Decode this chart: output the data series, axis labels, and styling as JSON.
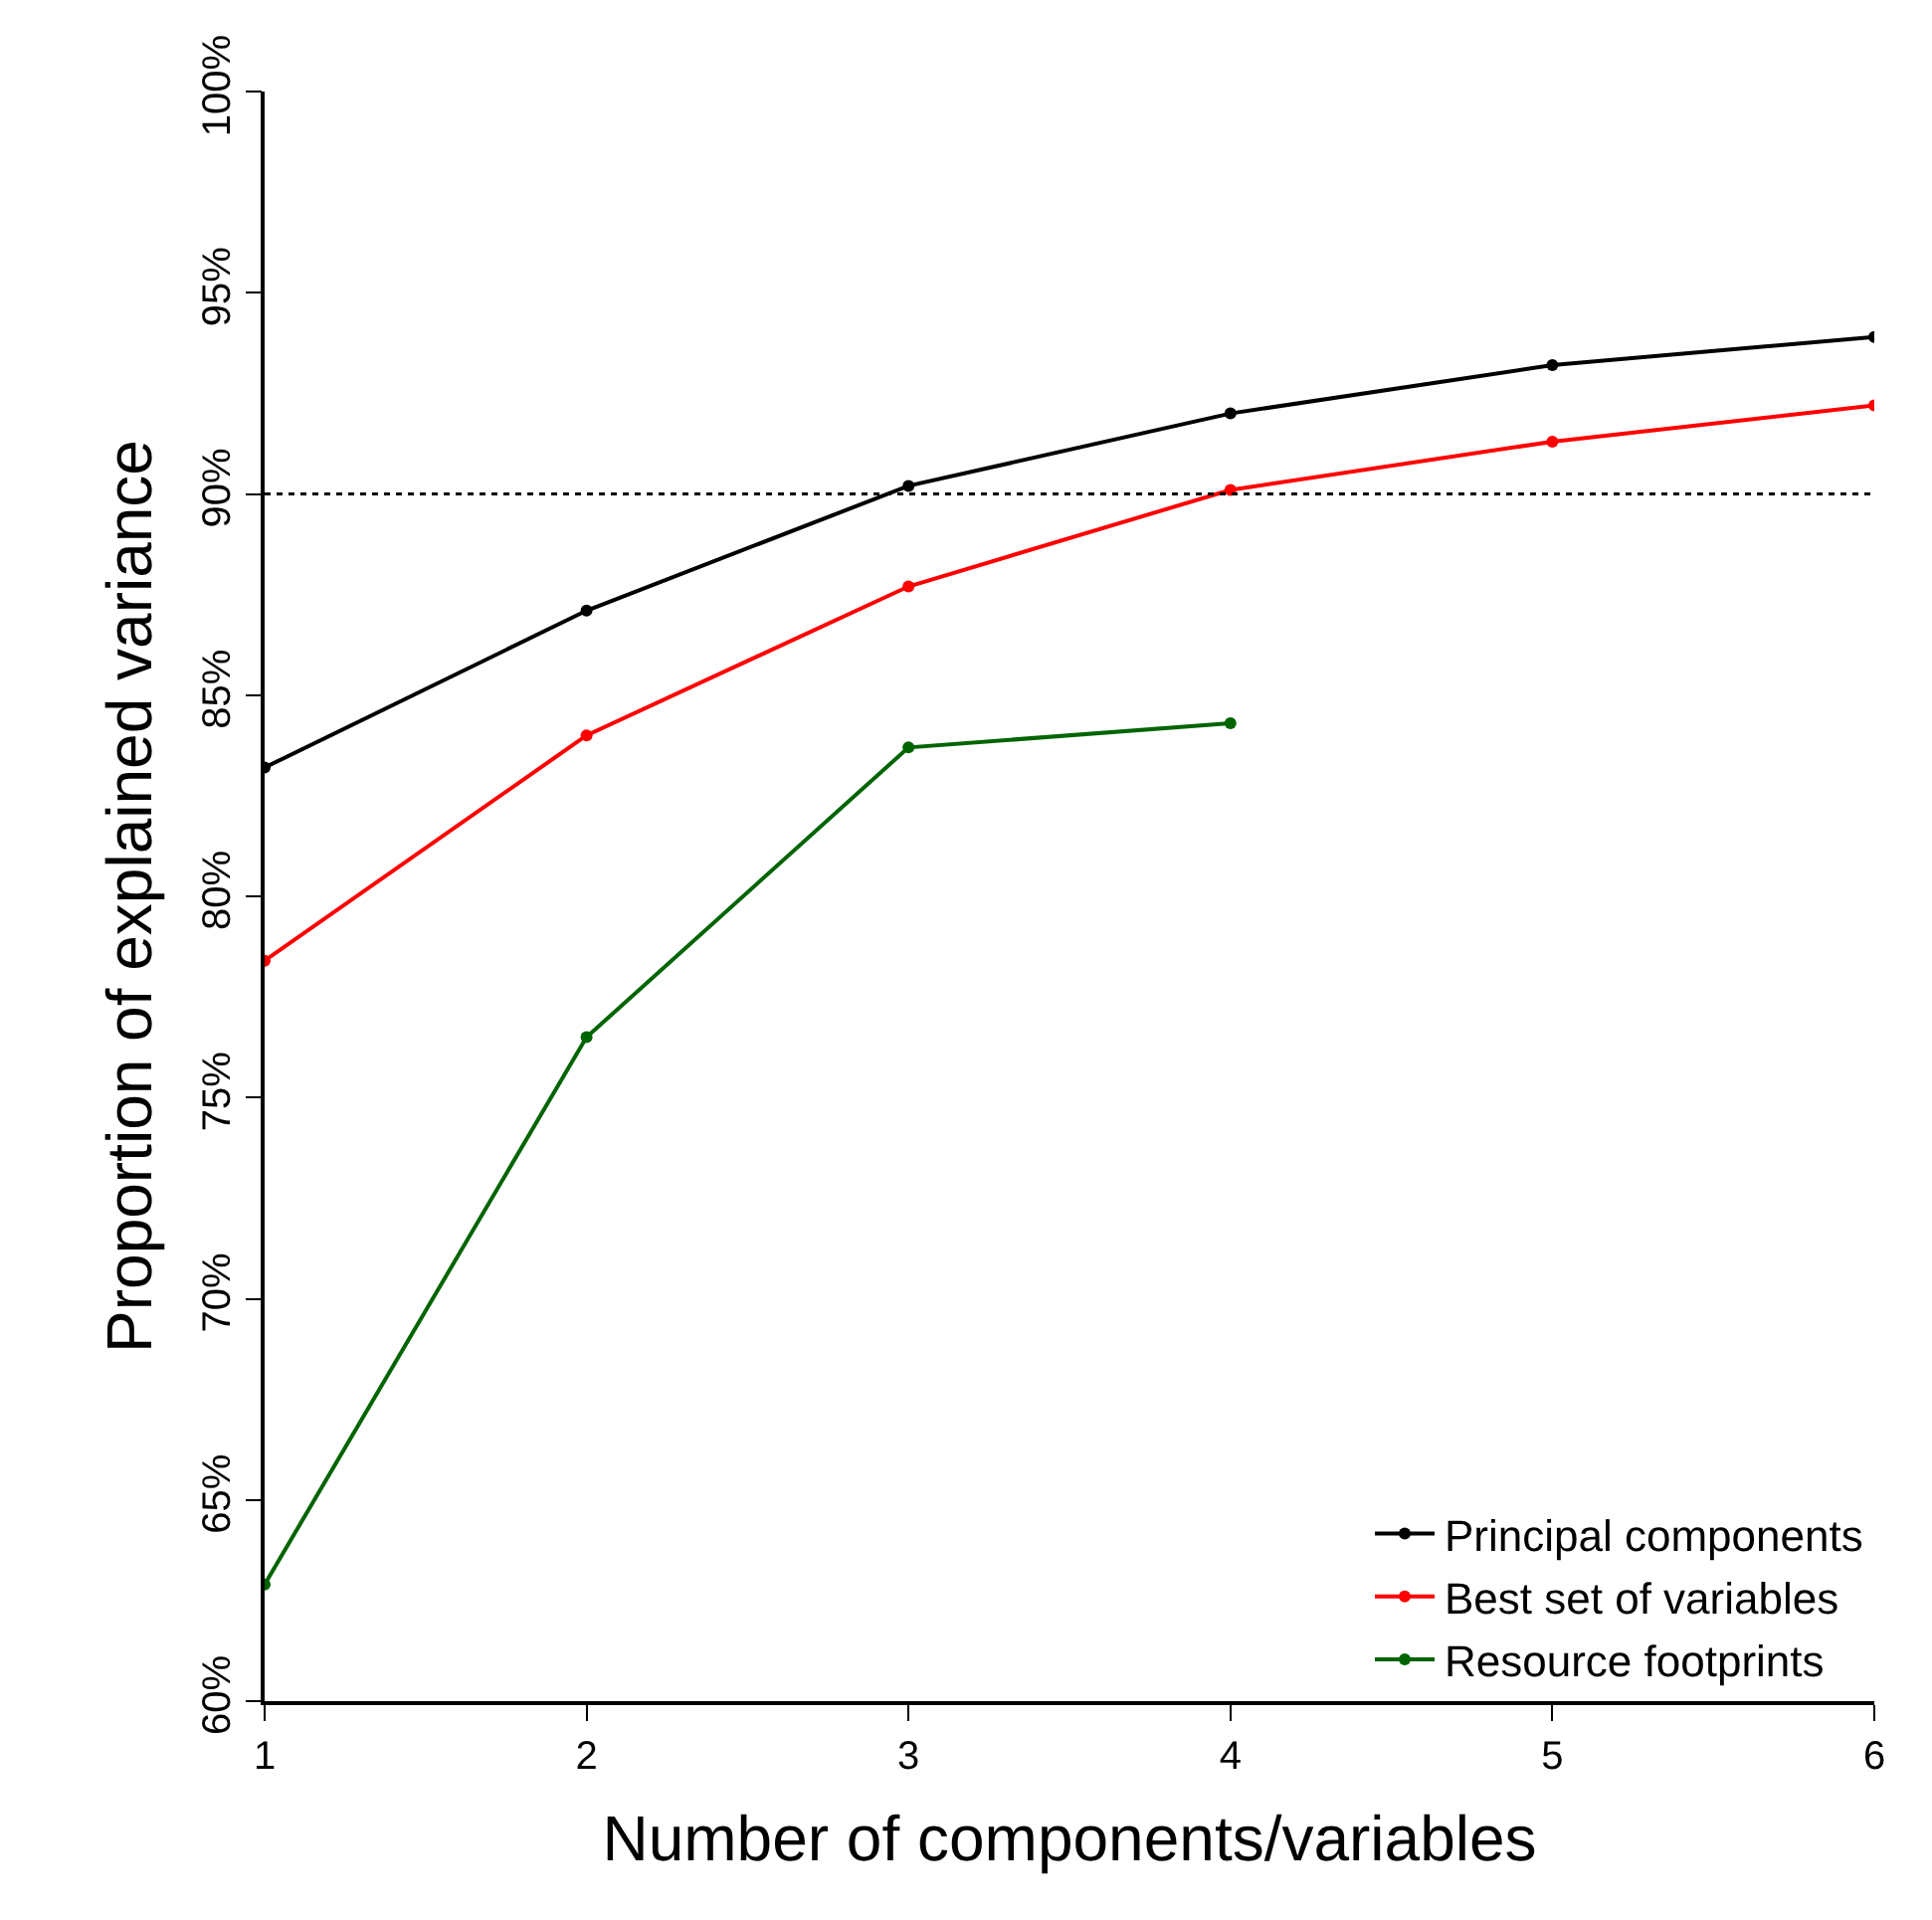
{
  "chart_data": {
    "type": "line",
    "xlabel": "Number of components/variables",
    "ylabel": "Proportion of explained variance",
    "x": [
      1,
      2,
      3,
      4,
      5,
      6
    ],
    "series": [
      {
        "name": "Principal components",
        "color": "#000000",
        "values": [
          83.2,
          87.1,
          90.2,
          92.0,
          93.2,
          93.9
        ]
      },
      {
        "name": "Best set of variables",
        "color": "#ff0000",
        "values": [
          78.4,
          84.0,
          87.7,
          90.1,
          91.3,
          92.2
        ]
      },
      {
        "name": "Resource footprints",
        "color": "#006400",
        "values": [
          62.9,
          76.5,
          83.7,
          84.3,
          null,
          null
        ]
      }
    ],
    "xlim": [
      1,
      6
    ],
    "xticks": [
      1,
      2,
      3,
      4,
      5,
      6
    ],
    "ylim": [
      60,
      100
    ],
    "yticks": [
      {
        "value": 60,
        "label": "60%"
      },
      {
        "value": 65,
        "label": "65%"
      },
      {
        "value": 70,
        "label": "70%"
      },
      {
        "value": 75,
        "label": "75%"
      },
      {
        "value": 80,
        "label": "80%"
      },
      {
        "value": 85,
        "label": "85%"
      },
      {
        "value": 90,
        "label": "90%"
      },
      {
        "value": 95,
        "label": "95%"
      },
      {
        "value": 100,
        "label": "100%"
      }
    ],
    "ref_lines": [
      {
        "axis": "y",
        "value": 90,
        "line_style": "dotted",
        "color": "#000000"
      }
    ],
    "legend": "bottom right",
    "marker": "circle",
    "line_style": "solid",
    "grid": false
  }
}
